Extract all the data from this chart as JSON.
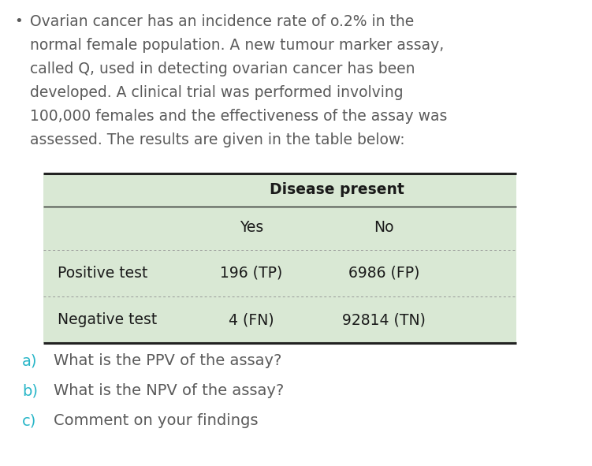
{
  "bg_color": "#ffffff",
  "table_bg_color": "#d9e8d4",
  "bullet_text_color": "#5a5a5a",
  "bullet_lines": [
    "Ovarian cancer has an incidence rate of o.2% in the",
    "normal female population. A new tumour marker assay,",
    "called Q, used in detecting ovarian cancer has been",
    "developed. A clinical trial was performed involving",
    "100,000 females and the effectiveness of the assay was",
    "assessed. The results are given in the table below:"
  ],
  "bullet_char": "•",
  "table_header": "Disease present",
  "col_headers": [
    "Yes",
    "No"
  ],
  "row_labels": [
    "Positive test",
    "Negative test"
  ],
  "cell_values": [
    [
      "196 (TP)",
      "6986 (FP)"
    ],
    [
      "4 (FN)",
      "92814 (TN)"
    ]
  ],
  "questions": [
    {
      "label": "a)",
      "text": "What is the PPV of the assay?"
    },
    {
      "label": "b)",
      "text": "What is the NPV of the assay?"
    },
    {
      "label": "c)",
      "text": "Comment on your findings"
    }
  ],
  "label_color": "#29b6c8",
  "text_color": "#5a5a5a",
  "table_text_color": "#1a1a1a",
  "right_bg_color": "#c8c8c8"
}
